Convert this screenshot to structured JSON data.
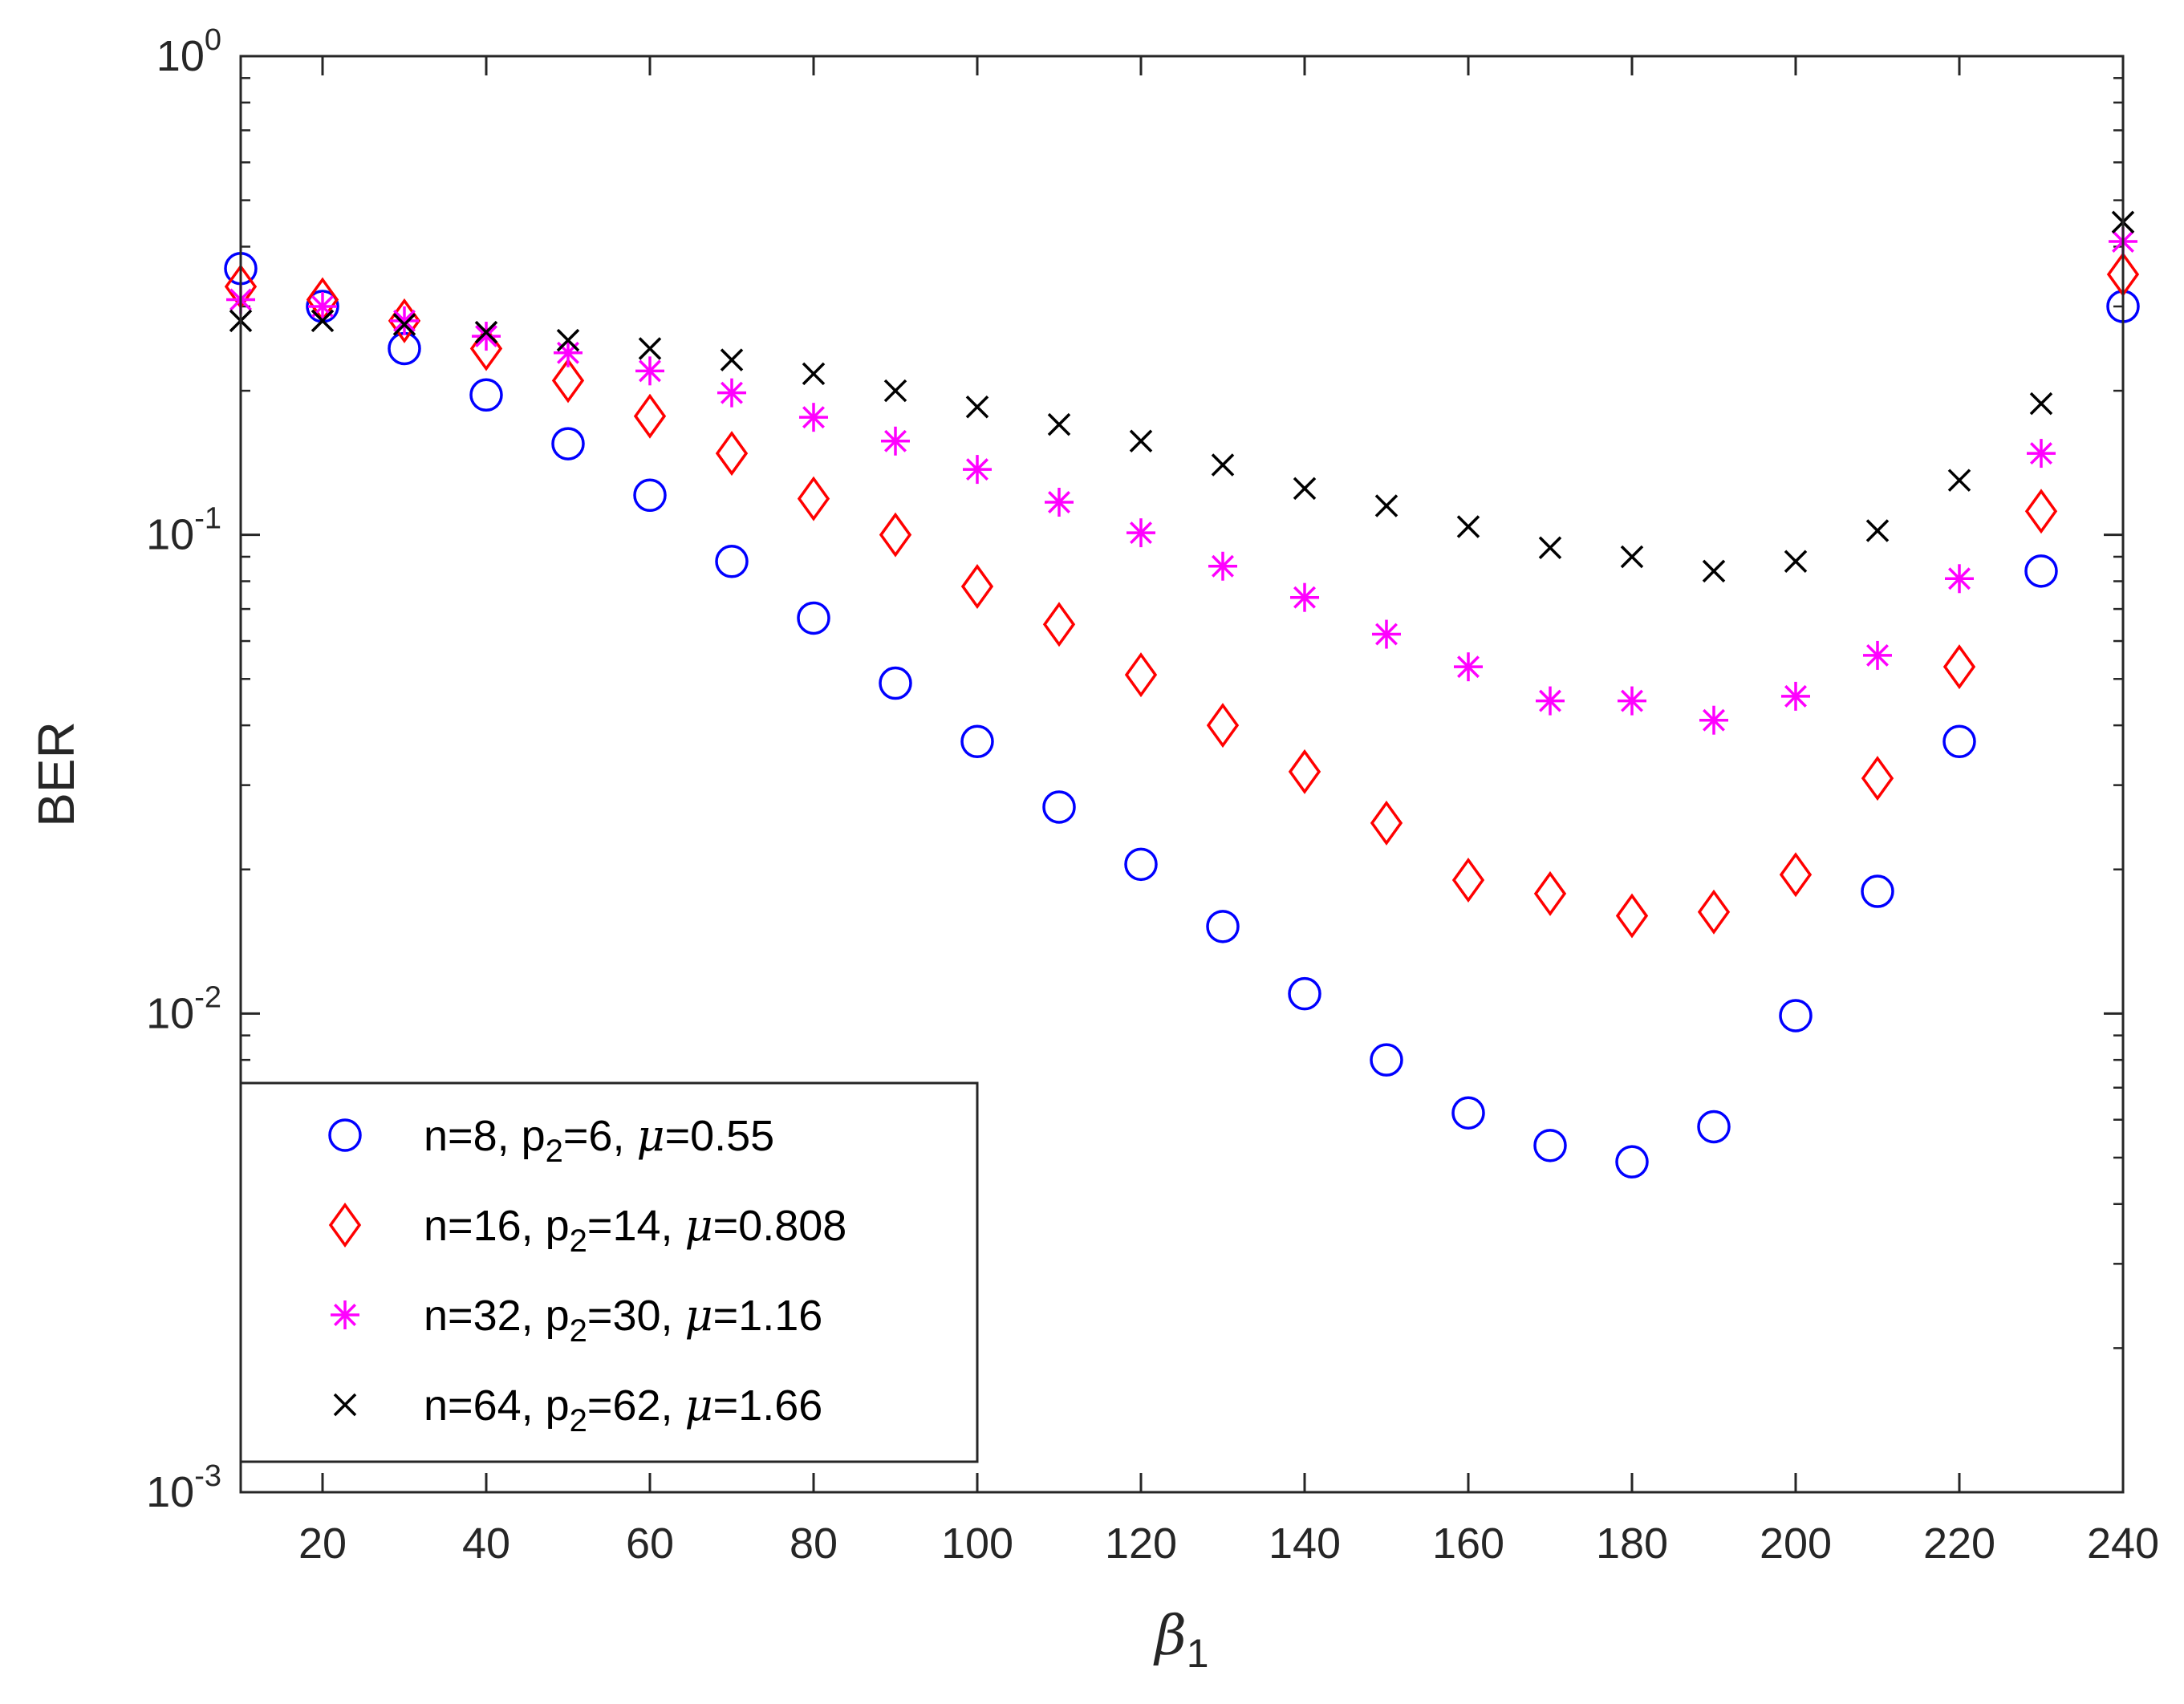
{
  "chart_data": {
    "type": "scatter",
    "title": "",
    "xlabel": "β",
    "xlabel_sub": "1",
    "ylabel": "BER",
    "xlim": [
      10,
      240
    ],
    "ylim": [
      0.001,
      1
    ],
    "yscale": "log",
    "xticks": [
      20,
      40,
      60,
      80,
      100,
      120,
      140,
      160,
      180,
      200,
      220,
      240
    ],
    "yticks": [
      {
        "value": 0.001,
        "base": "10",
        "exp": "-3"
      },
      {
        "value": 0.01,
        "base": "10",
        "exp": "-2"
      },
      {
        "value": 0.1,
        "base": "10",
        "exp": "-1"
      },
      {
        "value": 1,
        "base": "10",
        "exp": "0"
      }
    ],
    "legend_position": "bottom-left",
    "x": [
      10,
      20,
      30,
      40,
      50,
      60,
      70,
      80,
      90,
      100,
      110,
      120,
      130,
      140,
      150,
      160,
      170,
      180,
      190,
      200,
      210,
      220,
      230,
      240
    ],
    "series": [
      {
        "name": "n=8, p2=6, μ=0.55",
        "label_parts": {
          "pre": "n=8, p",
          "sub": "2",
          "mid": "=6, ",
          "mu": "μ",
          "post": "=0.55"
        },
        "marker": "circle",
        "color": "#0000ff",
        "x": [
          10,
          20,
          30,
          40,
          50,
          60,
          70,
          80,
          90,
          100,
          110,
          120,
          130,
          140,
          150,
          160,
          170,
          180,
          190,
          200,
          210,
          220,
          230,
          240
        ],
        "values": [
          0.36,
          0.3,
          0.245,
          0.196,
          0.155,
          0.121,
          0.088,
          0.067,
          0.049,
          0.037,
          0.027,
          0.0205,
          0.0152,
          0.011,
          0.008,
          0.0062,
          0.0053,
          0.0049,
          0.0058,
          0.0099,
          0.018,
          0.037,
          0.084,
          0.3
        ]
      },
      {
        "name": "n=16, p2=14, μ=0.808",
        "label_parts": {
          "pre": "n=16, p",
          "sub": "2",
          "mid": "=14, ",
          "mu": "μ",
          "post": "=0.808"
        },
        "marker": "diamond",
        "color": "#ff0000",
        "x": [
          10,
          20,
          30,
          40,
          50,
          60,
          70,
          80,
          90,
          100,
          110,
          120,
          130,
          140,
          150,
          160,
          170,
          180,
          190,
          200,
          210,
          220,
          230,
          240
        ],
        "values": [
          0.33,
          0.31,
          0.28,
          0.245,
          0.21,
          0.177,
          0.148,
          0.119,
          0.1,
          0.078,
          0.065,
          0.051,
          0.04,
          0.032,
          0.025,
          0.019,
          0.0178,
          0.016,
          0.0163,
          0.0195,
          0.031,
          0.053,
          0.112,
          0.35
        ]
      },
      {
        "name": "n=32, p2=30, μ=1.16",
        "label_parts": {
          "pre": "n=32, p",
          "sub": "2",
          "mid": "=30, ",
          "mu": "μ",
          "post": "=1.16"
        },
        "marker": "asterisk",
        "color": "#ff00ff",
        "x": [
          10,
          20,
          30,
          40,
          50,
          60,
          70,
          80,
          90,
          100,
          110,
          120,
          130,
          140,
          150,
          160,
          170,
          180,
          190,
          200,
          210,
          220,
          230,
          240
        ],
        "values": [
          0.31,
          0.3,
          0.28,
          0.26,
          0.24,
          0.22,
          0.198,
          0.176,
          0.157,
          0.137,
          0.117,
          0.101,
          0.086,
          0.074,
          0.062,
          0.053,
          0.045,
          0.045,
          0.041,
          0.046,
          0.056,
          0.081,
          0.148,
          0.41
        ]
      },
      {
        "name": "n=64, p2=62, μ=1.66",
        "label_parts": {
          "pre": "n=64, p",
          "sub": "2",
          "mid": "=62, ",
          "mu": "μ",
          "post": "=1.66"
        },
        "marker": "cross",
        "color": "#000000",
        "x": [
          10,
          20,
          30,
          40,
          50,
          60,
          70,
          80,
          90,
          100,
          110,
          120,
          130,
          140,
          150,
          160,
          170,
          180,
          190,
          200,
          210,
          220,
          230,
          240
        ],
        "values": [
          0.28,
          0.28,
          0.275,
          0.265,
          0.255,
          0.245,
          0.232,
          0.217,
          0.2,
          0.185,
          0.17,
          0.157,
          0.14,
          0.125,
          0.115,
          0.104,
          0.094,
          0.09,
          0.084,
          0.088,
          0.102,
          0.13,
          0.188,
          0.45
        ]
      }
    ]
  }
}
